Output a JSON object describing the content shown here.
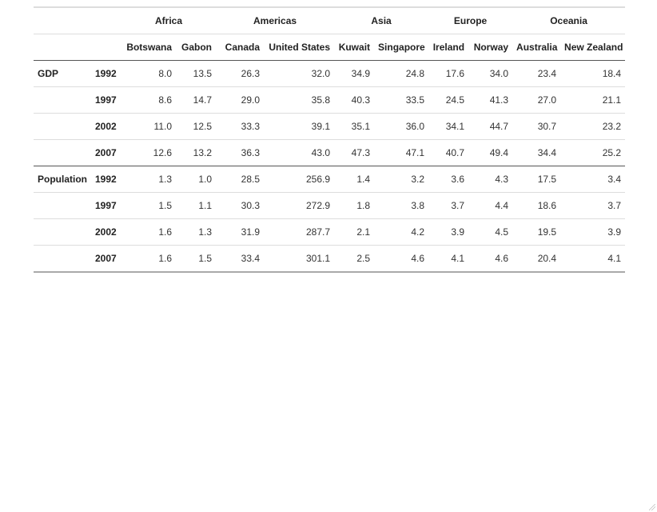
{
  "continents": [
    {
      "name": "Africa",
      "span": 2
    },
    {
      "name": "Americas",
      "span": 2
    },
    {
      "name": "Asia",
      "span": 2
    },
    {
      "name": "Europe",
      "span": 2
    },
    {
      "name": "Oceania",
      "span": 2
    }
  ],
  "countries": [
    "Botswana",
    "Gabon",
    "Canada",
    "United States",
    "Kuwait",
    "Singapore",
    "Ireland",
    "Norway",
    "Australia",
    "New Zealand"
  ],
  "groups": [
    {
      "metric": "GDP",
      "rows": [
        {
          "year": "1992",
          "values": [
            "8.0",
            "13.5",
            "26.3",
            "32.0",
            "34.9",
            "24.8",
            "17.6",
            "34.0",
            "23.4",
            "18.4"
          ]
        },
        {
          "year": "1997",
          "values": [
            "8.6",
            "14.7",
            "29.0",
            "35.8",
            "40.3",
            "33.5",
            "24.5",
            "41.3",
            "27.0",
            "21.1"
          ]
        },
        {
          "year": "2002",
          "values": [
            "11.0",
            "12.5",
            "33.3",
            "39.1",
            "35.1",
            "36.0",
            "34.1",
            "44.7",
            "30.7",
            "23.2"
          ]
        },
        {
          "year": "2007",
          "values": [
            "12.6",
            "13.2",
            "36.3",
            "43.0",
            "47.3",
            "47.1",
            "40.7",
            "49.4",
            "34.4",
            "25.2"
          ]
        }
      ]
    },
    {
      "metric": "Population",
      "rows": [
        {
          "year": "1992",
          "values": [
            "1.3",
            "1.0",
            "28.5",
            "256.9",
            "1.4",
            "3.2",
            "3.6",
            "4.3",
            "17.5",
            "3.4"
          ]
        },
        {
          "year": "1997",
          "values": [
            "1.5",
            "1.1",
            "30.3",
            "272.9",
            "1.8",
            "3.8",
            "3.7",
            "4.4",
            "18.6",
            "3.7"
          ]
        },
        {
          "year": "2002",
          "values": [
            "1.6",
            "1.3",
            "31.9",
            "287.7",
            "2.1",
            "4.2",
            "3.9",
            "4.5",
            "19.5",
            "3.9"
          ]
        },
        {
          "year": "2007",
          "values": [
            "1.6",
            "1.5",
            "33.4",
            "301.1",
            "2.5",
            "4.6",
            "4.1",
            "4.6",
            "20.4",
            "4.1"
          ]
        }
      ]
    }
  ]
}
